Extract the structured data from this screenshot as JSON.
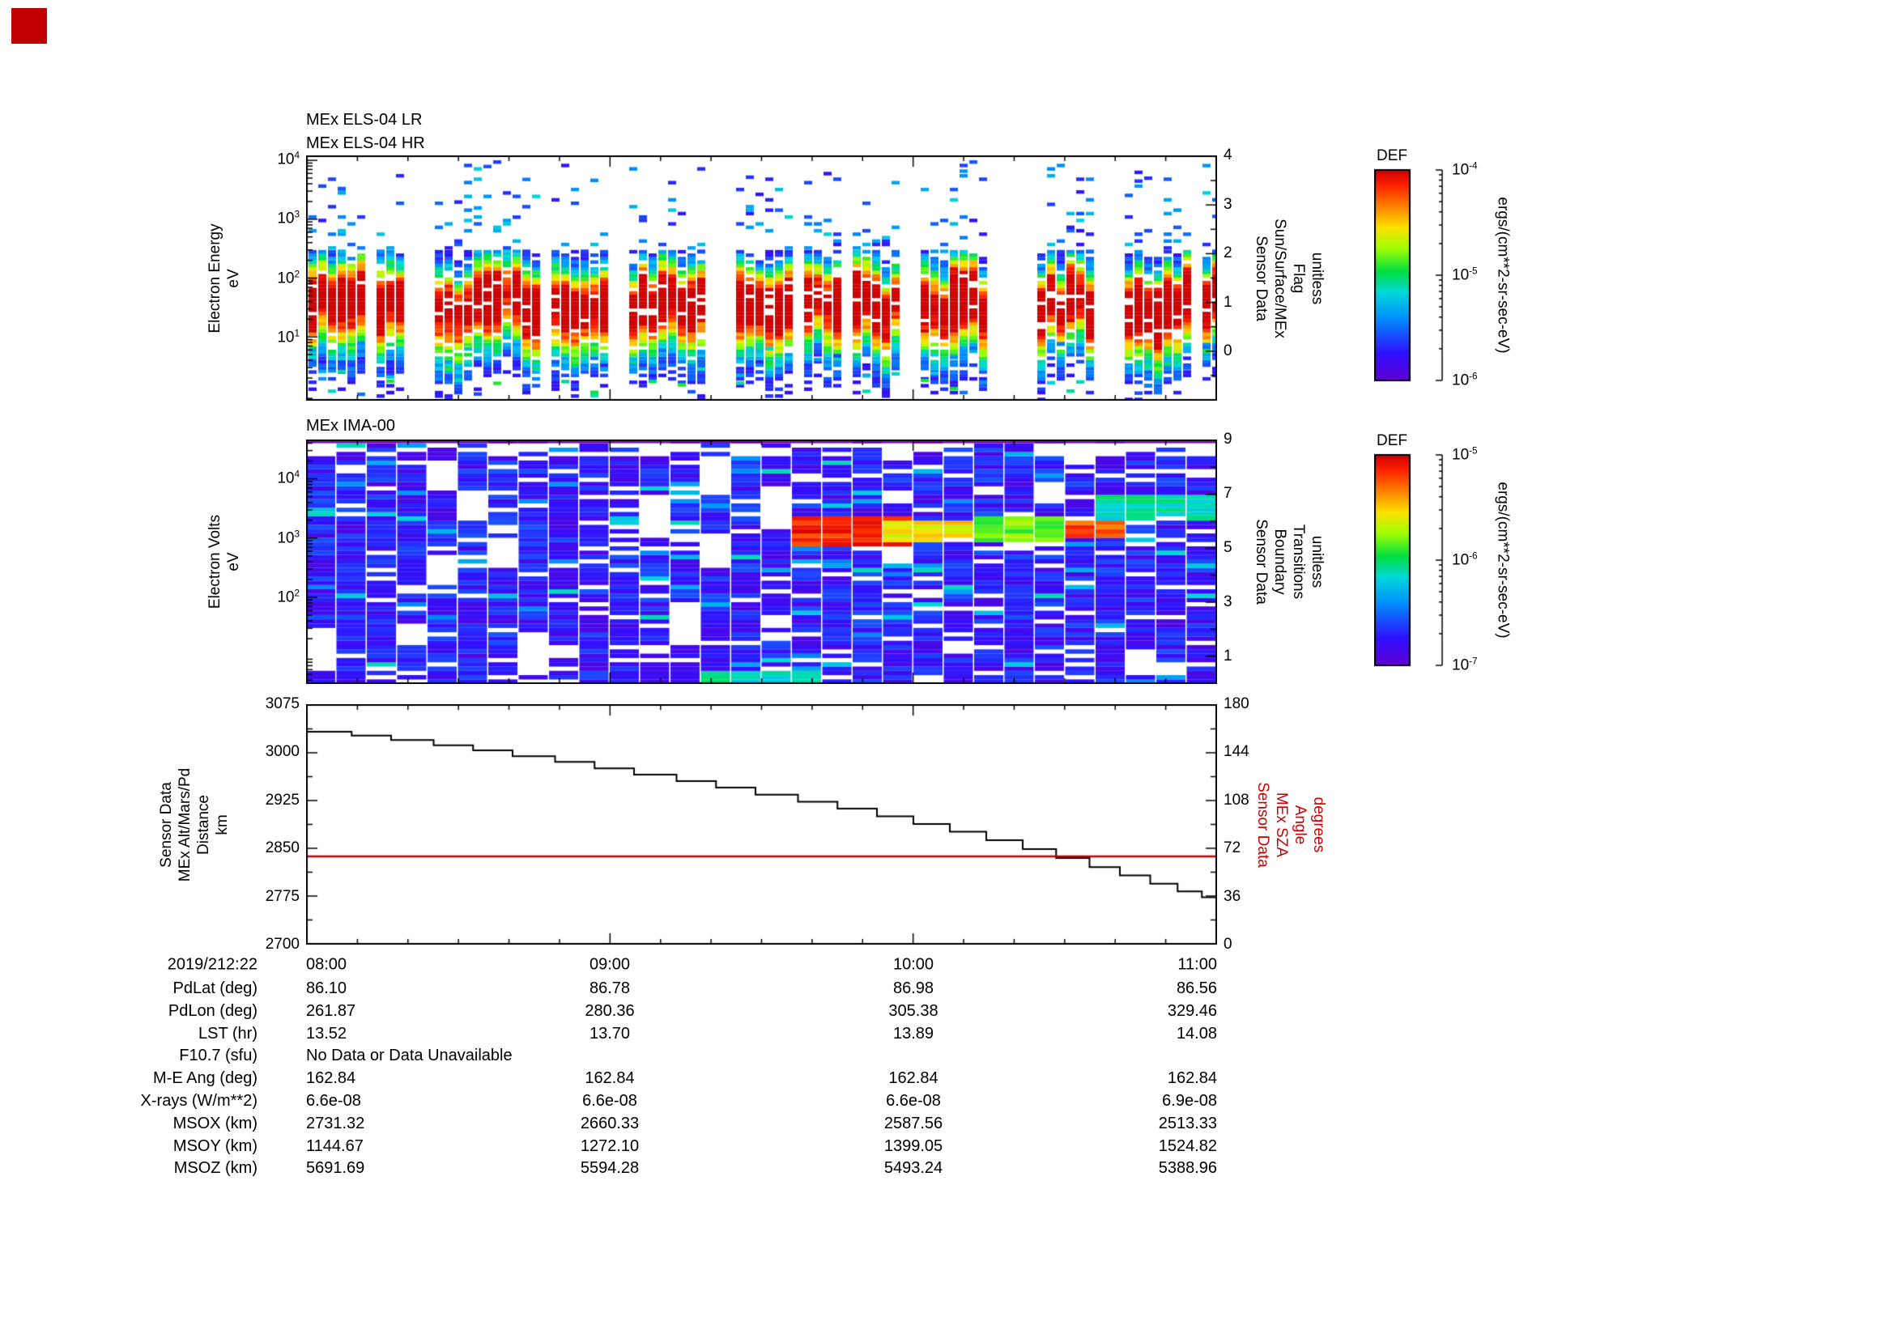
{
  "panels": {
    "els": {
      "titles": [
        "MEx ELS-04 LR",
        "MEx ELS-04 HR"
      ],
      "left_label_lines": [
        "Electron Energy",
        "eV"
      ],
      "left_ticks": [
        {
          "label": "10^4",
          "log": 4
        },
        {
          "label": "10^3",
          "log": 3
        },
        {
          "label": "10^2",
          "log": 2
        },
        {
          "label": "10^1",
          "log": 1
        }
      ],
      "right_label_lines": [
        "Sensor Data",
        "Sun/Surface/MEx",
        "Flag",
        "unitless"
      ],
      "right_ticks": [
        {
          "label": "4",
          "value": 4
        },
        {
          "label": "3",
          "value": 3
        },
        {
          "label": "2",
          "value": 2
        },
        {
          "label": "1",
          "value": 1
        },
        {
          "label": "0",
          "value": 0
        }
      ]
    },
    "ima": {
      "title": "MEx IMA-00",
      "left_label_lines": [
        "Electron Volts",
        "eV"
      ],
      "left_ticks": [
        {
          "label": "10^4",
          "log": 4
        },
        {
          "label": "10^3",
          "log": 3
        },
        {
          "label": "10^2",
          "log": 2
        }
      ],
      "right_label_lines": [
        "Sensor Data",
        "Boundary",
        "Transitions",
        "unitless"
      ],
      "right_ticks": [
        {
          "label": "9",
          "value": 9
        },
        {
          "label": "7",
          "value": 7
        },
        {
          "label": "5",
          "value": 5
        },
        {
          "label": "3",
          "value": 3
        },
        {
          "label": "1",
          "value": 1
        }
      ]
    },
    "alt": {
      "left_label_lines": [
        "Sensor Data",
        "MEx Alt/Mars/Pd",
        "Distance",
        "km"
      ],
      "left_ticks": [
        {
          "label": "3075",
          "value": 3075
        },
        {
          "label": "3000",
          "value": 3000
        },
        {
          "label": "2925",
          "value": 2925
        },
        {
          "label": "2850",
          "value": 2850
        },
        {
          "label": "2775",
          "value": 2775
        },
        {
          "label": "2700",
          "value": 2700
        }
      ],
      "right_label_lines": [
        "Sensor Data",
        "MEx SZA",
        "Angle",
        "degrees"
      ],
      "right_ticks": [
        {
          "label": "180",
          "value": 180
        },
        {
          "label": "144",
          "value": 144
        },
        {
          "label": "108",
          "value": 108
        },
        {
          "label": "72",
          "value": 72
        },
        {
          "label": "36",
          "value": 36
        },
        {
          "label": "0",
          "value": 0
        }
      ],
      "right_color": "#cc0000"
    }
  },
  "xaxis": {
    "date_label": "2019/212:22",
    "ticks": [
      {
        "label": "08:00",
        "hour": 8
      },
      {
        "label": "09:00",
        "hour": 9
      },
      {
        "label": "10:00",
        "hour": 10
      },
      {
        "label": "11:00",
        "hour": 11
      }
    ]
  },
  "colorbars": [
    {
      "title": "DEF",
      "tick_labels": [
        "10^-4",
        "10^-5",
        "10^-6"
      ],
      "units": "ergs/(cm**2-sr-sec-eV)"
    },
    {
      "title": "DEF",
      "tick_labels": [
        "10^-5",
        "10^-6",
        "10^-7"
      ],
      "units": "ergs/(cm**2-sr-sec-eV)"
    }
  ],
  "table": {
    "rows": [
      {
        "label": "PdLat (deg)",
        "values": [
          "86.10",
          "86.78",
          "86.98",
          "86.56"
        ]
      },
      {
        "label": "PdLon (deg)",
        "values": [
          "261.87",
          "280.36",
          "305.38",
          "329.46"
        ]
      },
      {
        "label": "LST (hr)",
        "values": [
          "13.52",
          "13.70",
          "13.89",
          "14.08"
        ]
      },
      {
        "label": "F10.7 (sfu)",
        "values": [],
        "span_text": "No Data or Data Unavailable"
      },
      {
        "label": "M-E Ang (deg)",
        "values": [
          "162.84",
          "162.84",
          "162.84",
          "162.84"
        ]
      },
      {
        "label": "X-rays (W/m**2)",
        "values": [
          "6.6e-08",
          "6.6e-08",
          "6.6e-08",
          "6.9e-08"
        ]
      },
      {
        "label": "MSOX (km)",
        "values": [
          "2731.32",
          "2660.33",
          "2587.56",
          "2513.33"
        ]
      },
      {
        "label": "MSOY (km)",
        "values": [
          "1144.67",
          "1272.10",
          "1399.05",
          "1524.82"
        ]
      },
      {
        "label": "MSOZ (km)",
        "values": [
          "5691.69",
          "5594.28",
          "5493.24",
          "5388.96"
        ]
      }
    ]
  },
  "chart_data": [
    {
      "type": "heatmap",
      "title": "MEx ELS-04 LR / MEx ELS-04 HR",
      "ylabel": "Electron Energy (eV)",
      "y_scale": "log",
      "y_range_eV": [
        1,
        10000
      ],
      "x_range": [
        "2019/212 08:00",
        "2019/212 11:00"
      ],
      "value_label": "DEF ergs/(cm**2-sr-sec-eV)",
      "value_range": [
        1e-06,
        0.0001
      ],
      "right_axis": {
        "label": "Sensor Data Sun/Surface/MEx Flag (unitless)",
        "range": [
          -1,
          4
        ],
        "ticks": [
          0,
          1,
          2,
          3,
          4
        ]
      },
      "summary": "Intense electron flux band (~1e-4, red) between ~10 and ~150 eV across the whole interval, grading through yellow/green/cyan to blue away from the peak; sparse blue bursts up to ~5000 eV; short white data gaps recur every ~20-40 min",
      "data_gaps_hours": [
        [
          8.32,
          8.4
        ],
        [
          8.98,
          9.04
        ],
        [
          9.3,
          9.4
        ],
        [
          9.96,
          10.02
        ],
        [
          10.28,
          10.38
        ],
        [
          10.62,
          10.68
        ]
      ],
      "seed": 42
    },
    {
      "type": "heatmap",
      "title": "MEx IMA-00",
      "ylabel": "Electron Volts (eV)",
      "y_scale": "log",
      "y_range_eV": [
        4,
        45000
      ],
      "x_range": [
        "2019/212 08:00",
        "2019/212 11:00"
      ],
      "value_label": "DEF ergs/(cm**2-sr-sec-eV)",
      "value_range": [
        1e-07,
        1e-05
      ],
      "right_axis": {
        "label": "Sensor Data Boundary Transitions (unitless)",
        "range": [
          0,
          9
        ],
        "ticks": [
          1,
          3,
          5,
          7,
          9
        ]
      },
      "summary": "Mostly weak flux (blue/violet) with fine horizontal banding and scattered white gaps; strong enhancement (green to red, up to ~1e-5) near ~1 keV between ~09:40 and ~10:40; cyan-green patch near 2-6 keV after ~10:40",
      "features": [
        {
          "t": [
            9.62,
            9.97
          ],
          "logE": [
            2.85,
            3.35
          ],
          "v": 0.93
        },
        {
          "t": [
            9.97,
            10.22
          ],
          "logE": [
            2.9,
            3.32
          ],
          "v": 0.72
        },
        {
          "t": [
            10.22,
            10.5
          ],
          "logE": [
            2.95,
            3.35
          ],
          "v": 0.6
        },
        {
          "t": [
            10.5,
            10.68
          ],
          "logE": [
            3.0,
            3.3
          ],
          "v": 0.88
        },
        {
          "t": [
            10.68,
            11.0
          ],
          "logE": [
            3.3,
            3.75
          ],
          "v": 0.45
        },
        {
          "t": [
            9.35,
            9.62
          ],
          "logE": [
            0.58,
            0.8
          ],
          "v": 0.45
        }
      ],
      "seed": 7
    },
    {
      "type": "line",
      "x_unit": "hours (2019/212)",
      "xlim": [
        8,
        11
      ],
      "ylim_left": [
        2700,
        3075
      ],
      "ylim_right": [
        0,
        180
      ],
      "series": [
        {
          "name": "Sensor Data MEx Alt/Mars/Pd Distance (km)",
          "color": "#000000",
          "style": "steps",
          "axis": "left",
          "points": [
            [
              8.0,
              3032
            ],
            [
              8.15,
              3026
            ],
            [
              8.28,
              3019
            ],
            [
              8.42,
              3011
            ],
            [
              8.55,
              3003
            ],
            [
              8.68,
              2994
            ],
            [
              8.82,
              2985
            ],
            [
              8.95,
              2975
            ],
            [
              9.08,
              2965
            ],
            [
              9.22,
              2955
            ],
            [
              9.35,
              2945
            ],
            [
              9.48,
              2934
            ],
            [
              9.62,
              2923
            ],
            [
              9.75,
              2912
            ],
            [
              9.88,
              2900
            ],
            [
              10.0,
              2888
            ],
            [
              10.12,
              2876
            ],
            [
              10.24,
              2863
            ],
            [
              10.36,
              2849
            ],
            [
              10.47,
              2835
            ],
            [
              10.58,
              2821
            ],
            [
              10.68,
              2808
            ],
            [
              10.78,
              2795
            ],
            [
              10.87,
              2783
            ],
            [
              10.95,
              2774
            ],
            [
              11.0,
              2771
            ]
          ]
        },
        {
          "name": "Sensor Data MEx SZA Angle (degrees)",
          "color": "#cc0000",
          "style": "line",
          "axis": "right",
          "points": [
            [
              8.0,
              66
            ],
            [
              11.0,
              66
            ]
          ]
        }
      ]
    }
  ]
}
